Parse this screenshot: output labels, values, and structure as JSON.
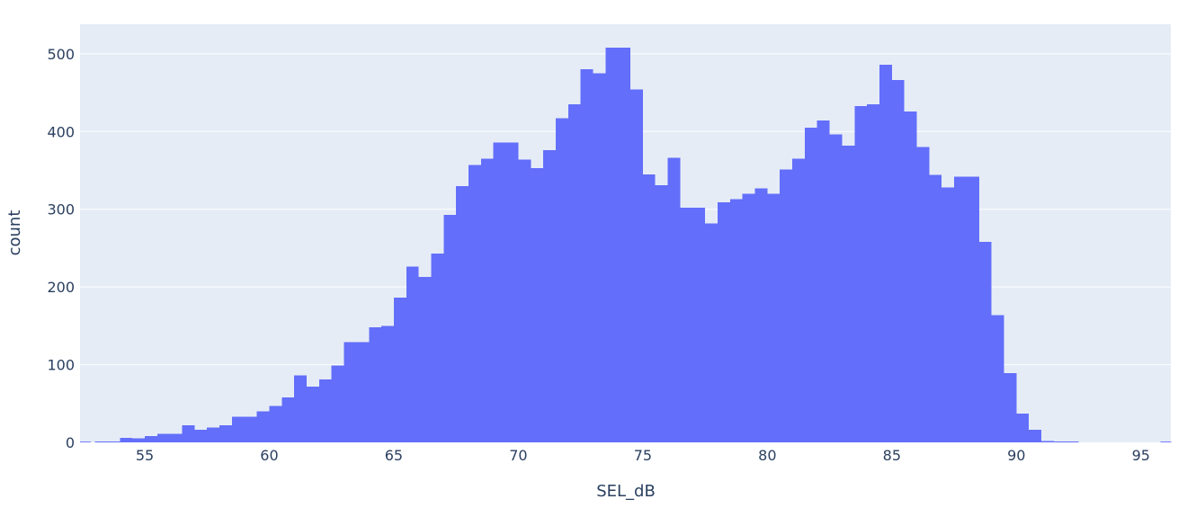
{
  "chart_data": {
    "type": "histogram",
    "title": "",
    "xlabel": "SEL_dB",
    "ylabel": "count",
    "xlim": [
      52.4,
      96.2
    ],
    "ylim": [
      0,
      538
    ],
    "x_ticks": [
      "55",
      "60",
      "65",
      "70",
      "75",
      "80",
      "85",
      "90",
      "95"
    ],
    "y_ticks": [
      "0",
      "100",
      "200",
      "300",
      "400",
      "500"
    ],
    "grid": true,
    "legend": "none",
    "bar_color": "#636efa",
    "plot_bg": "#e5ecf6",
    "grid_color": "#ffffff",
    "text_color": "#2a3f5f",
    "bin_width": 0.5,
    "bin_starts": [
      52.5,
      53.0,
      53.5,
      54.0,
      54.5,
      55.0,
      55.5,
      56.0,
      56.5,
      57.0,
      57.5,
      58.0,
      58.5,
      59.0,
      59.5,
      60.0,
      60.5,
      61.0,
      61.5,
      62.0,
      62.5,
      63.0,
      63.5,
      64.0,
      64.5,
      65.0,
      65.5,
      66.0,
      66.5,
      67.0,
      67.5,
      68.0,
      68.5,
      69.0,
      69.5,
      70.0,
      70.5,
      71.0,
      71.5,
      72.0,
      72.5,
      73.0,
      73.5,
      74.0,
      74.5,
      75.0,
      75.5,
      76.0,
      76.5,
      77.0,
      77.5,
      78.0,
      78.5,
      79.0,
      79.5,
      80.0,
      80.5,
      81.0,
      81.5,
      82.0,
      82.5,
      83.0,
      83.5,
      84.0,
      84.5,
      85.0,
      85.5,
      86.0,
      86.5,
      87.0,
      87.5,
      88.0,
      88.5,
      89.0,
      89.5,
      90.0,
      90.5,
      91.0,
      91.5,
      92.0,
      92.5,
      93.0,
      93.5,
      94.0,
      94.5,
      95.0,
      95.5
    ],
    "counts": [
      0,
      1,
      1,
      6,
      5,
      8,
      11,
      11,
      22,
      16,
      19,
      22,
      33,
      33,
      40,
      47,
      58,
      86,
      72,
      81,
      99,
      129,
      129,
      148,
      150,
      186,
      226,
      213,
      243,
      293,
      330,
      357,
      365,
      386,
      386,
      364,
      353,
      376,
      417,
      435,
      480,
      475,
      508,
      508,
      454,
      345,
      331,
      366,
      302,
      302,
      282,
      309,
      313,
      320,
      327,
      320,
      351,
      365,
      405,
      414,
      396,
      382,
      433,
      435,
      486,
      466,
      426,
      380,
      344,
      328,
      342,
      342,
      258,
      164,
      89,
      37,
      16,
      2,
      1,
      1,
      0,
      0,
      0,
      0,
      0,
      0,
      0
    ],
    "edge_points": [
      {
        "x": 52.5,
        "count": 1
      },
      {
        "x": 96.0,
        "count": 1
      }
    ]
  }
}
